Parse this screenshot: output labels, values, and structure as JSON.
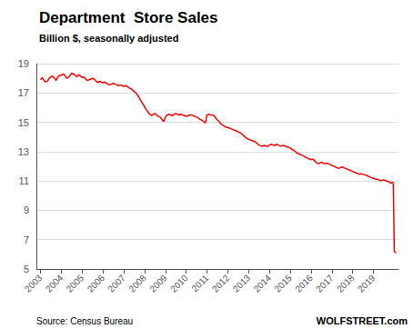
{
  "chart_data": {
    "type": "line",
    "title": "Department  Store Sales",
    "subtitle": "Billion $, seasonally adjusted",
    "annotations": [
      "Source: Census Bureau",
      "WOLFSTREET.com"
    ],
    "color": "#ff0000",
    "grid": "y",
    "xlim": [
      2002.8,
      2020.2
    ],
    "xticks": [
      2003,
      2004,
      2005,
      2006,
      2007,
      2008,
      2009,
      2010,
      2011,
      2012,
      2013,
      2014,
      2015,
      2016,
      2017,
      2018,
      2019
    ],
    "ylim": [
      5,
      19
    ],
    "yticks": [
      5,
      7,
      9,
      11,
      13,
      15,
      17,
      19
    ],
    "x": [
      2003.0,
      2003.08,
      2003.17,
      2003.25,
      2003.33,
      2003.42,
      2003.5,
      2003.58,
      2003.67,
      2003.75,
      2003.83,
      2003.92,
      2004.0,
      2004.08,
      2004.17,
      2004.25,
      2004.33,
      2004.42,
      2004.5,
      2004.58,
      2004.67,
      2004.75,
      2004.83,
      2004.92,
      2005.0,
      2005.08,
      2005.17,
      2005.25,
      2005.33,
      2005.42,
      2005.5,
      2005.58,
      2005.67,
      2005.75,
      2005.83,
      2005.92,
      2006.0,
      2006.08,
      2006.17,
      2006.25,
      2006.33,
      2006.42,
      2006.5,
      2006.58,
      2006.67,
      2006.75,
      2006.83,
      2006.92,
      2007.0,
      2007.08,
      2007.17,
      2007.25,
      2007.33,
      2007.42,
      2007.5,
      2007.58,
      2007.67,
      2007.75,
      2007.83,
      2007.92,
      2008.0,
      2008.08,
      2008.17,
      2008.25,
      2008.33,
      2008.42,
      2008.5,
      2008.58,
      2008.67,
      2008.75,
      2008.83,
      2008.92,
      2009.0,
      2009.08,
      2009.17,
      2009.25,
      2009.33,
      2009.42,
      2009.5,
      2009.58,
      2009.67,
      2009.75,
      2009.83,
      2009.92,
      2010.0,
      2010.08,
      2010.17,
      2010.25,
      2010.33,
      2010.42,
      2010.5,
      2010.58,
      2010.67,
      2010.75,
      2010.83,
      2010.92,
      2011.0,
      2011.08,
      2011.17,
      2011.25,
      2011.33,
      2011.42,
      2011.5,
      2011.58,
      2011.67,
      2011.75,
      2011.83,
      2011.92,
      2012.0,
      2012.08,
      2012.17,
      2012.25,
      2012.33,
      2012.42,
      2012.5,
      2012.58,
      2012.67,
      2012.75,
      2012.83,
      2012.92,
      2013.0,
      2013.08,
      2013.17,
      2013.25,
      2013.33,
      2013.42,
      2013.5,
      2013.58,
      2013.67,
      2013.75,
      2013.83,
      2013.92,
      2014.0,
      2014.08,
      2014.17,
      2014.25,
      2014.33,
      2014.42,
      2014.5,
      2014.58,
      2014.67,
      2014.75,
      2014.83,
      2014.92,
      2015.0,
      2015.08,
      2015.17,
      2015.25,
      2015.33,
      2015.42,
      2015.5,
      2015.58,
      2015.67,
      2015.75,
      2015.83,
      2015.92,
      2016.0,
      2016.08,
      2016.17,
      2016.25,
      2016.33,
      2016.42,
      2016.5,
      2016.58,
      2016.67,
      2016.75,
      2016.83,
      2016.92,
      2017.0,
      2017.08,
      2017.17,
      2017.25,
      2017.33,
      2017.42,
      2017.5,
      2017.58,
      2017.67,
      2017.75,
      2017.83,
      2017.92,
      2018.0,
      2018.08,
      2018.17,
      2018.25,
      2018.33,
      2018.42,
      2018.5,
      2018.58,
      2018.67,
      2018.75,
      2018.83,
      2018.92,
      2019.0,
      2019.08,
      2019.17,
      2019.25,
      2019.33,
      2019.42,
      2019.5,
      2019.58,
      2019.67,
      2019.75,
      2019.83,
      2019.917,
      2019.95,
      2020.0,
      2020.08
    ],
    "values": [
      17.9,
      18.05,
      17.85,
      17.75,
      17.8,
      18.0,
      18.1,
      18.15,
      18.0,
      17.85,
      18.1,
      18.2,
      18.2,
      18.3,
      18.2,
      18.0,
      18.05,
      18.2,
      18.35,
      18.3,
      18.2,
      18.1,
      18.25,
      18.15,
      18.05,
      18.1,
      17.95,
      17.85,
      17.9,
      17.95,
      18.0,
      17.95,
      17.8,
      17.7,
      17.8,
      17.75,
      17.7,
      17.75,
      17.65,
      17.6,
      17.55,
      17.6,
      17.65,
      17.6,
      17.55,
      17.5,
      17.55,
      17.5,
      17.45,
      17.5,
      17.45,
      17.35,
      17.3,
      17.2,
      17.1,
      17.0,
      16.85,
      16.65,
      16.45,
      16.25,
      16.05,
      15.85,
      15.7,
      15.55,
      15.45,
      15.55,
      15.6,
      15.5,
      15.4,
      15.35,
      15.2,
      15.05,
      15.35,
      15.5,
      15.55,
      15.5,
      15.45,
      15.55,
      15.6,
      15.55,
      15.5,
      15.55,
      15.5,
      15.45,
      15.4,
      15.45,
      15.5,
      15.5,
      15.45,
      15.4,
      15.35,
      15.3,
      15.2,
      15.15,
      15.05,
      14.95,
      15.5,
      15.55,
      15.5,
      15.5,
      15.45,
      15.3,
      15.15,
      15.05,
      14.9,
      14.8,
      14.75,
      14.65,
      14.65,
      14.6,
      14.55,
      14.5,
      14.45,
      14.4,
      14.35,
      14.3,
      14.2,
      14.1,
      14.0,
      13.9,
      13.85,
      13.8,
      13.75,
      13.7,
      13.65,
      13.55,
      13.45,
      13.4,
      13.38,
      13.42,
      13.38,
      13.35,
      13.45,
      13.5,
      13.45,
      13.42,
      13.5,
      13.45,
      13.4,
      13.38,
      13.42,
      13.38,
      13.32,
      13.28,
      13.25,
      13.15,
      13.1,
      13.0,
      12.9,
      12.85,
      12.8,
      12.75,
      12.7,
      12.6,
      12.55,
      12.5,
      12.45,
      12.5,
      12.38,
      12.25,
      12.18,
      12.22,
      12.28,
      12.22,
      12.18,
      12.22,
      12.18,
      12.12,
      12.05,
      12.02,
      11.95,
      11.9,
      11.85,
      11.92,
      11.95,
      11.9,
      11.85,
      11.8,
      11.75,
      11.7,
      11.65,
      11.6,
      11.55,
      11.5,
      11.45,
      11.5,
      11.45,
      11.42,
      11.38,
      11.32,
      11.28,
      11.22,
      11.18,
      11.12,
      11.12,
      11.08,
      11.02,
      11.05,
      11.08,
      11.02,
      10.98,
      10.95,
      10.85,
      10.92,
      10.85,
      6.2,
      6.1
    ]
  }
}
